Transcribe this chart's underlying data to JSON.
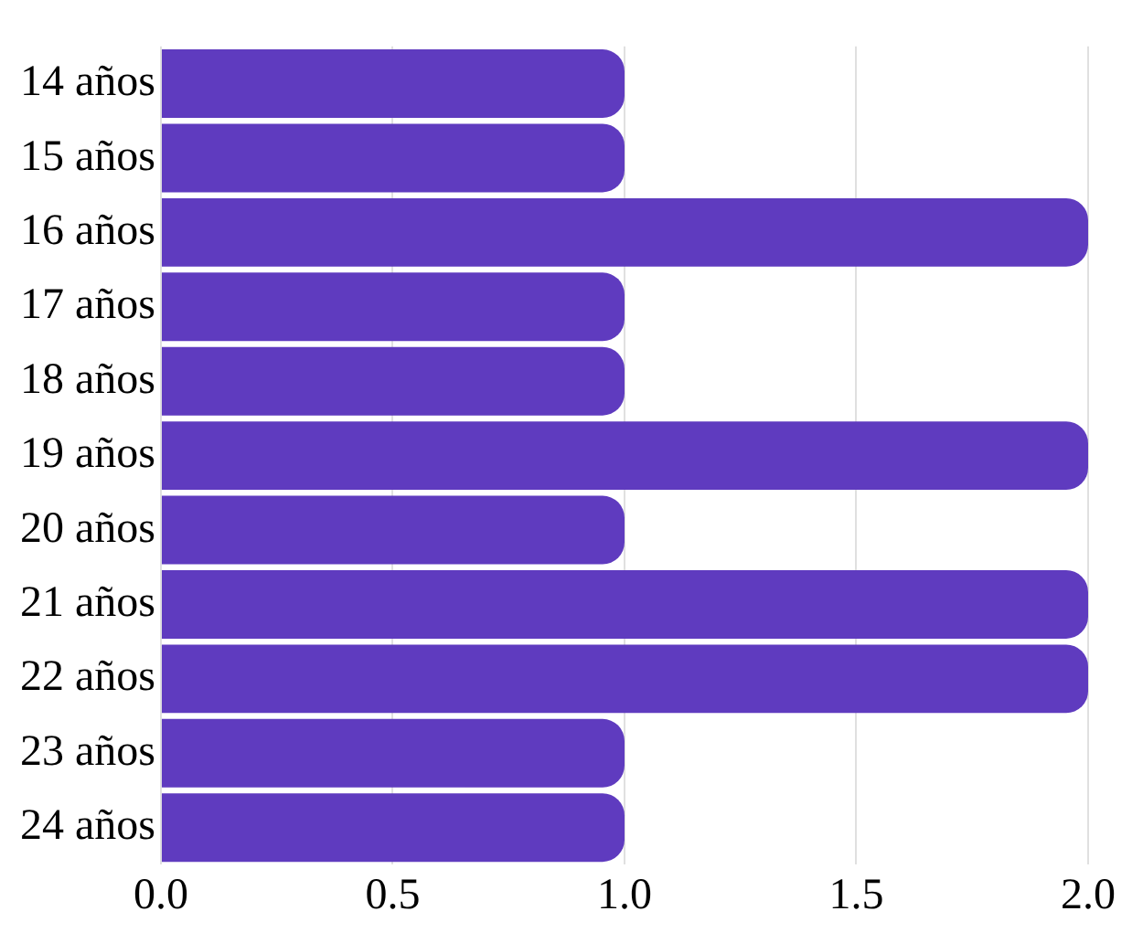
{
  "chart_data": {
    "type": "bar",
    "orientation": "horizontal",
    "categories": [
      "14 años",
      "15 años",
      "16 años",
      "17 años",
      "18 años",
      "19 años",
      "20 años",
      "21 años",
      "22 años",
      "23 años",
      "24 años"
    ],
    "values": [
      1,
      1,
      2,
      1,
      1,
      2,
      1,
      2,
      2,
      1,
      1
    ],
    "color": "#5f3bbf",
    "xlim": [
      0,
      2
    ],
    "xticks": [
      {
        "value": 0,
        "label": "0.0"
      },
      {
        "value": 0.5,
        "label": "0.5"
      },
      {
        "value": 1,
        "label": "1.0"
      },
      {
        "value": 1.5,
        "label": "1.5"
      },
      {
        "value": 2,
        "label": "2.0"
      }
    ],
    "grid": "x"
  }
}
